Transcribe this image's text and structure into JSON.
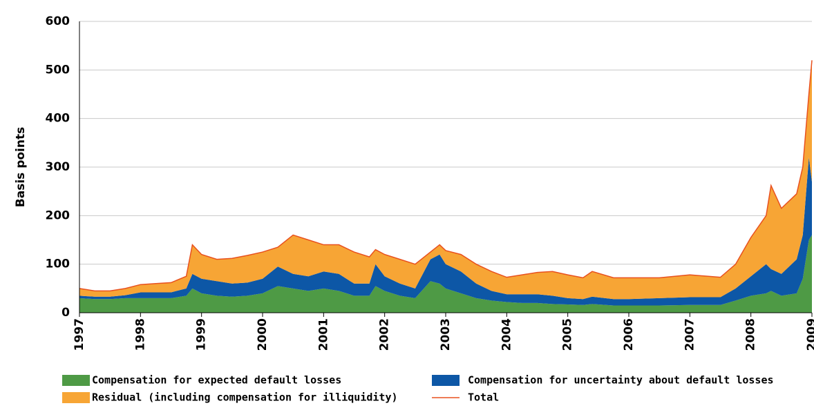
{
  "chart_data": {
    "type": "stacked_area",
    "ylabel": "Basis points",
    "x": [
      1997.0,
      1997.25,
      1997.5,
      1997.75,
      1998.0,
      1998.25,
      1998.5,
      1998.75,
      1998.85,
      1999.0,
      1999.25,
      1999.5,
      1999.75,
      2000.0,
      2000.25,
      2000.5,
      2000.75,
      2001.0,
      2001.25,
      2001.5,
      2001.75,
      2001.85,
      2002.0,
      2002.25,
      2002.5,
      2002.75,
      2002.9,
      2003.0,
      2003.25,
      2003.5,
      2003.75,
      2004.0,
      2004.25,
      2004.5,
      2004.75,
      2005.0,
      2005.25,
      2005.4,
      2005.75,
      2006.0,
      2006.5,
      2007.0,
      2007.5,
      2007.75,
      2008.0,
      2008.25,
      2008.33,
      2008.5,
      2008.75,
      2008.85,
      2008.95,
      2009.0
    ],
    "series": [
      {
        "name": "Compensation for expected default losses",
        "color": "#4e9a45",
        "values": [
          30,
          28,
          28,
          30,
          30,
          30,
          30,
          35,
          50,
          40,
          35,
          33,
          35,
          40,
          55,
          50,
          45,
          50,
          45,
          35,
          35,
          55,
          45,
          35,
          30,
          65,
          60,
          50,
          40,
          30,
          25,
          22,
          20,
          20,
          18,
          17,
          16,
          18,
          15,
          15,
          15,
          16,
          16,
          25,
          35,
          40,
          45,
          35,
          40,
          70,
          150,
          160
        ]
      },
      {
        "name": "Compensation for uncertainty about default losses",
        "color": "#0d57a6",
        "values": [
          5,
          5,
          5,
          6,
          12,
          12,
          12,
          15,
          30,
          30,
          30,
          27,
          27,
          30,
          40,
          30,
          30,
          35,
          35,
          25,
          25,
          45,
          30,
          25,
          20,
          45,
          60,
          50,
          45,
          30,
          20,
          16,
          18,
          18,
          17,
          13,
          12,
          15,
          13,
          13,
          15,
          16,
          16,
          25,
          40,
          60,
          45,
          45,
          70,
          90,
          170,
          110
        ]
      },
      {
        "name": "Residual (including compensation for illiquidity)",
        "color": "#f7a535",
        "values": [
          15,
          12,
          12,
          14,
          16,
          18,
          20,
          25,
          60,
          50,
          45,
          52,
          56,
          55,
          40,
          80,
          75,
          55,
          60,
          65,
          55,
          30,
          45,
          50,
          50,
          15,
          20,
          28,
          35,
          40,
          40,
          35,
          40,
          45,
          50,
          48,
          44,
          52,
          44,
          44,
          42,
          46,
          41,
          50,
          80,
          100,
          172,
          135,
          135,
          140,
          130,
          250
        ]
      }
    ],
    "total": {
      "name": "Total",
      "color": "#e8501e",
      "values": [
        50,
        45,
        45,
        50,
        58,
        60,
        62,
        75,
        140,
        120,
        110,
        112,
        118,
        125,
        135,
        160,
        150,
        140,
        140,
        125,
        115,
        130,
        120,
        110,
        100,
        125,
        140,
        128,
        120,
        100,
        85,
        73,
        78,
        83,
        85,
        78,
        72,
        85,
        72,
        72,
        72,
        78,
        73,
        100,
        155,
        200,
        262,
        215,
        245,
        300,
        450,
        520
      ]
    },
    "xlim": [
      1997,
      2009
    ],
    "xticks": [
      1997,
      1998,
      1999,
      2000,
      2001,
      2002,
      2003,
      2004,
      2005,
      2006,
      2007,
      2008,
      2009
    ],
    "ylim": [
      0,
      600
    ],
    "yticks": [
      0,
      100,
      200,
      300,
      400,
      500,
      600
    ],
    "grid": true
  }
}
